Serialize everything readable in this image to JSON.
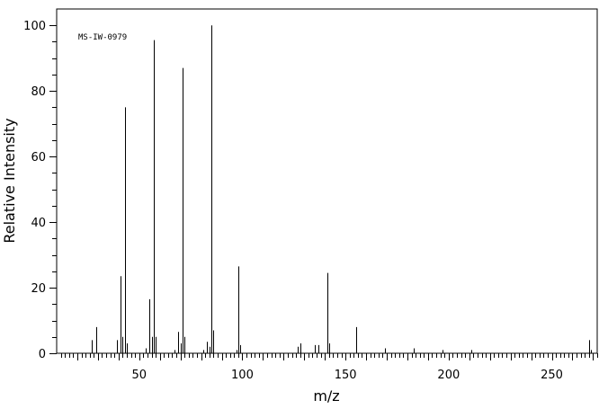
{
  "chart_data": {
    "type": "bar",
    "annotation": "MS-IW-0979",
    "xlabel": "m/z",
    "ylabel": "Relative Intensity",
    "xlim": [
      10,
      272
    ],
    "ylim": [
      0,
      105
    ],
    "xticks": [
      50,
      100,
      150,
      200,
      250
    ],
    "yticks": [
      0,
      20,
      40,
      60,
      80,
      100
    ],
    "peaks": {
      "x": [
        27,
        29,
        39,
        41,
        42,
        43,
        44,
        53,
        55,
        56,
        57,
        58,
        67,
        69,
        70,
        71,
        72,
        81,
        83,
        84,
        85,
        86,
        97,
        98,
        99,
        127,
        128,
        135,
        137,
        141,
        142,
        155,
        169,
        183,
        197,
        211,
        268,
        269
      ],
      "y": [
        4.0,
        8.0,
        4.0,
        23.5,
        5.0,
        75.0,
        3.0,
        1.5,
        16.5,
        5.0,
        95.5,
        5.0,
        1.0,
        6.5,
        3.0,
        87.0,
        5.0,
        1.0,
        3.5,
        2.0,
        100.0,
        7.0,
        1.0,
        26.5,
        2.5,
        2.0,
        3.0,
        2.5,
        2.5,
        24.5,
        3.0,
        8.0,
        1.5,
        1.5,
        1.0,
        1.0,
        4.0,
        1.0
      ]
    }
  }
}
